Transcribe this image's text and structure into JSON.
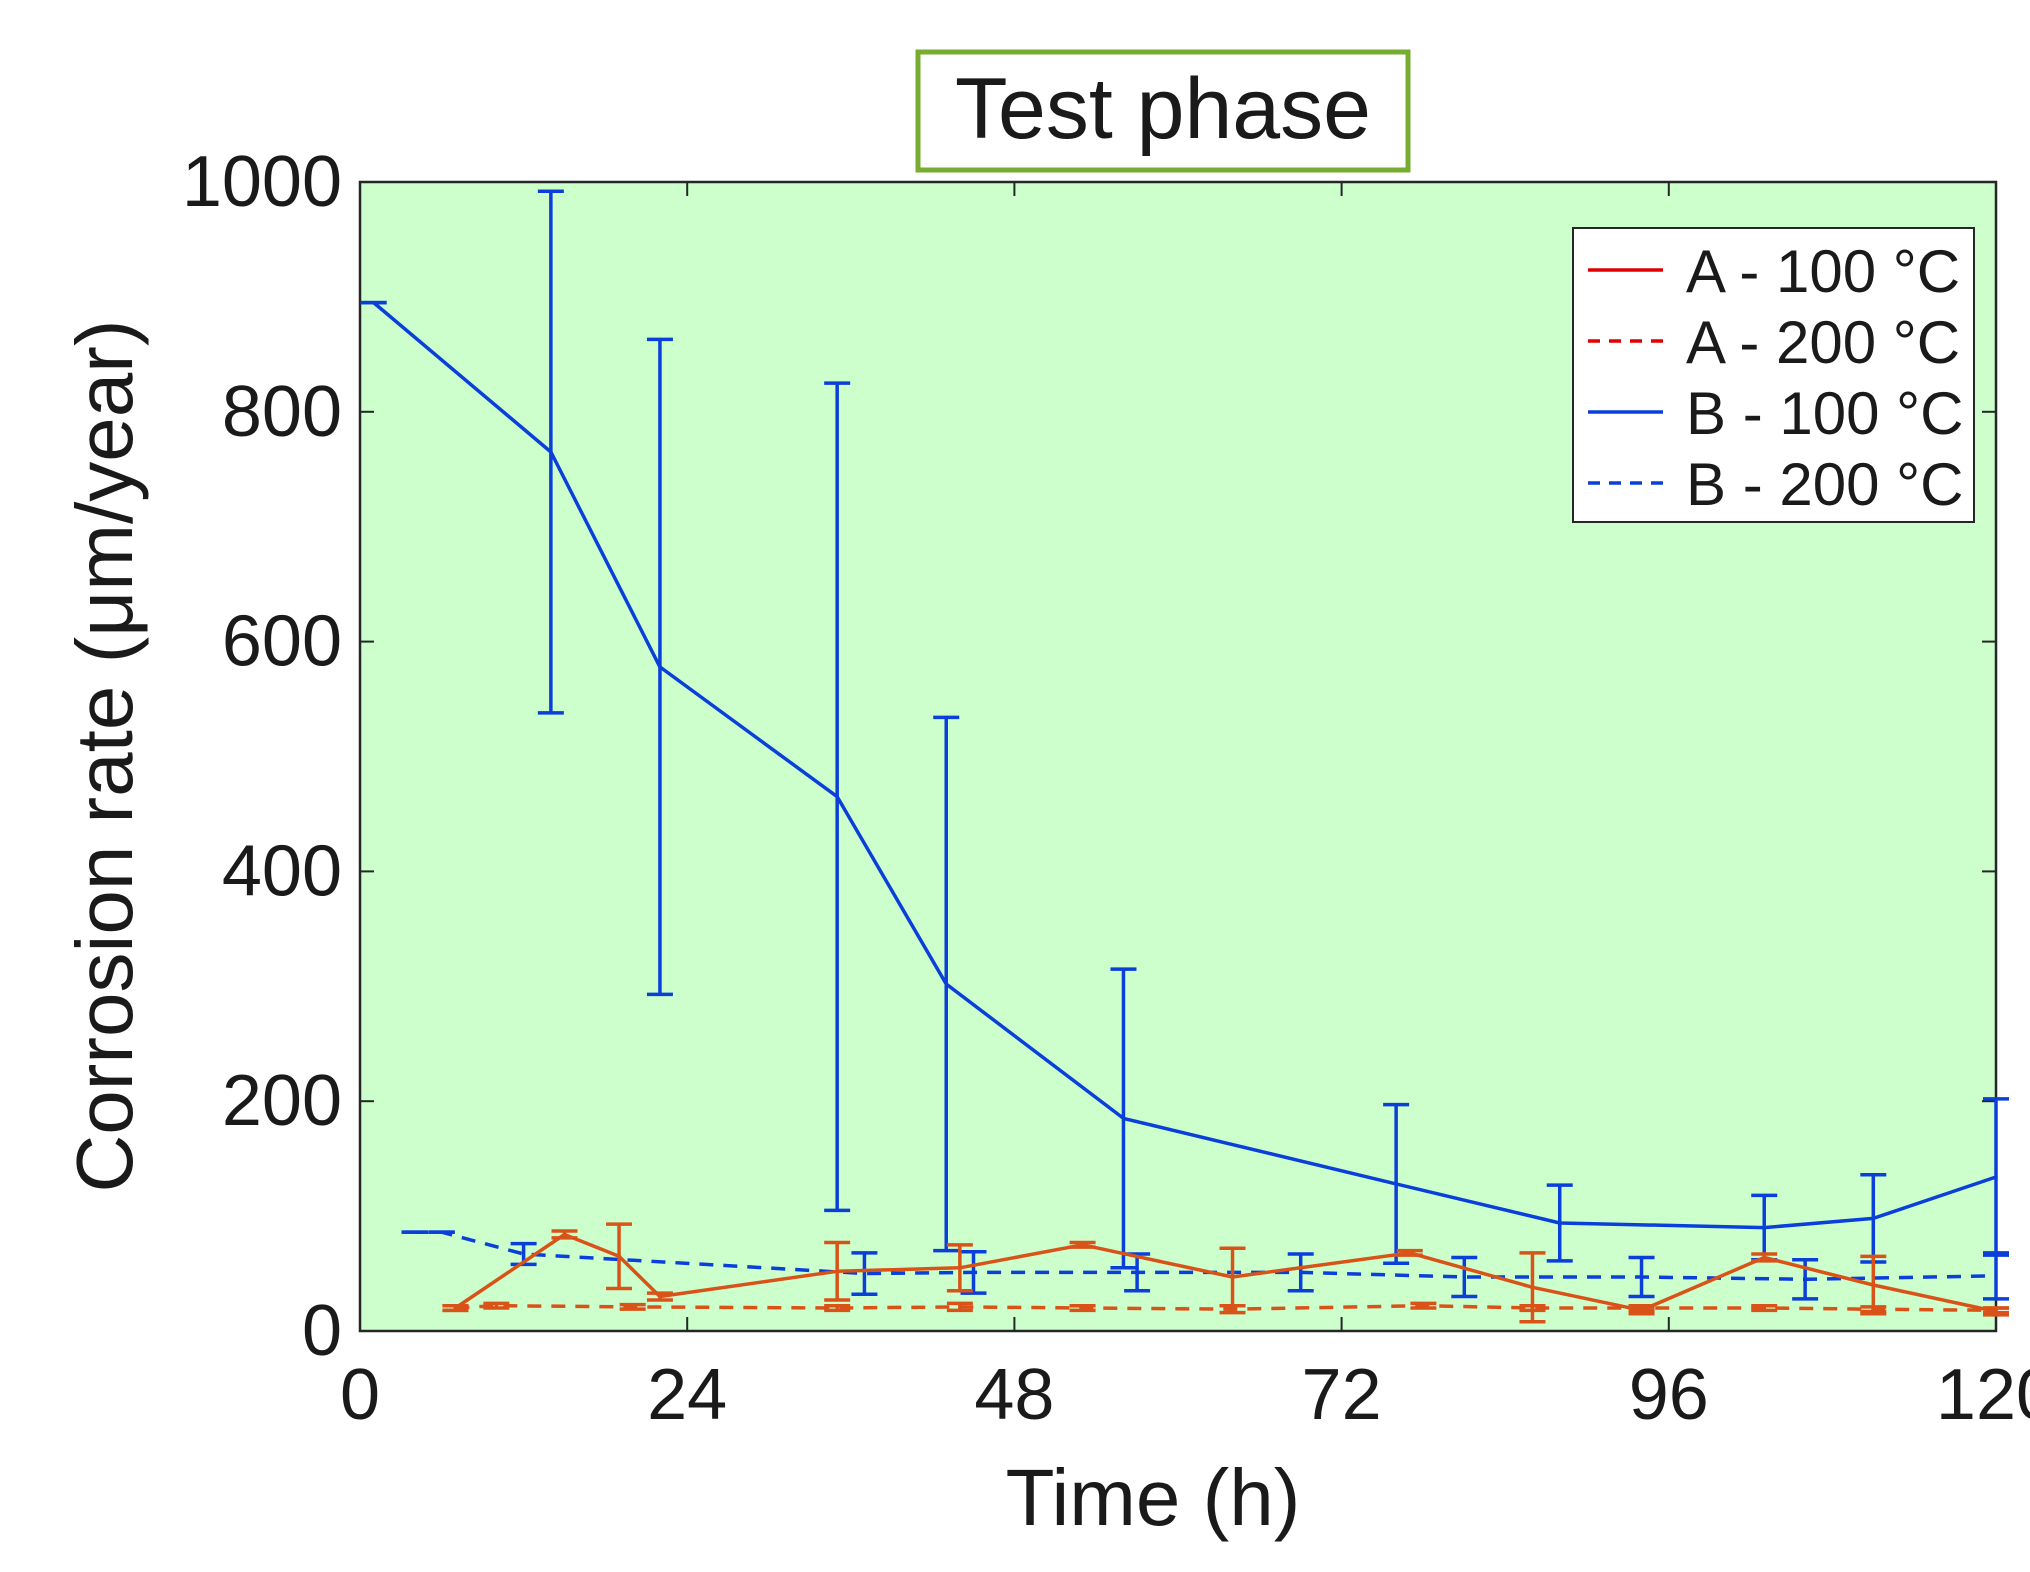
{
  "chart_data": {
    "type": "line",
    "title": "Test phase",
    "xlabel": "Time (h)",
    "ylabel": "Corrosion rate (μm/year)",
    "xlim": [
      0,
      120
    ],
    "ylim": [
      0,
      1000
    ],
    "xticks": [
      0,
      24,
      48,
      72,
      96,
      120
    ],
    "yticks": [
      0,
      200,
      400,
      600,
      800,
      1000
    ],
    "grid": false,
    "legend_position": "top-right",
    "background_color": "#ccffcc",
    "title_box_color": "#77ac30",
    "series": [
      {
        "name": "A - 100 °C",
        "color": "#e00000",
        "line_color": "#d95319",
        "dash": "solid",
        "x": [
          7,
          15,
          19,
          22,
          35,
          44,
          53,
          64,
          77,
          86,
          94,
          103,
          111,
          120
        ],
        "y": [
          20,
          84,
          65,
          30,
          52,
          55,
          75,
          47,
          68,
          38,
          18,
          64,
          40,
          17
        ],
        "err": [
          2,
          3,
          28,
          3,
          25,
          20,
          2,
          25,
          2,
          30,
          3,
          3,
          25,
          3
        ]
      },
      {
        "name": "A - 200 °C",
        "color": "#e00000",
        "line_color": "#d95319",
        "dash": "dash",
        "x": [
          7,
          10,
          20,
          35,
          44,
          53,
          64,
          78,
          86,
          94,
          103,
          111,
          120
        ],
        "y": [
          20,
          22,
          21,
          20,
          21,
          20,
          19,
          22,
          20,
          20,
          20,
          19,
          18
        ],
        "err": [
          2,
          2,
          2,
          2,
          3,
          2,
          3,
          2,
          2,
          2,
          2,
          2,
          2
        ]
      },
      {
        "name": "B - 100 °C",
        "color": "#0b3fd9",
        "line_color": "#0b3fd9",
        "dash": "solid",
        "x": [
          1,
          14,
          22,
          35,
          43,
          56,
          76,
          88,
          103,
          111,
          120
        ],
        "y": [
          895,
          765,
          578,
          465,
          302,
          185,
          128,
          94,
          90,
          98,
          134
        ],
        "err": [
          0,
          227,
          285,
          360,
          232,
          130,
          69,
          33,
          28,
          38,
          68
        ]
      },
      {
        "name": "B - 200 °C",
        "color": "#0b3fd9",
        "line_color": "#0b3fd9",
        "dash": "dash",
        "x": [
          4,
          6,
          12,
          37,
          45,
          57,
          69,
          81,
          94,
          106,
          120
        ],
        "y": [
          86,
          86,
          67,
          50,
          51,
          51,
          51,
          47,
          47,
          45,
          48
        ],
        "err": [
          0,
          0,
          9,
          18,
          18,
          16,
          16,
          17,
          17,
          17,
          20
        ]
      }
    ]
  }
}
